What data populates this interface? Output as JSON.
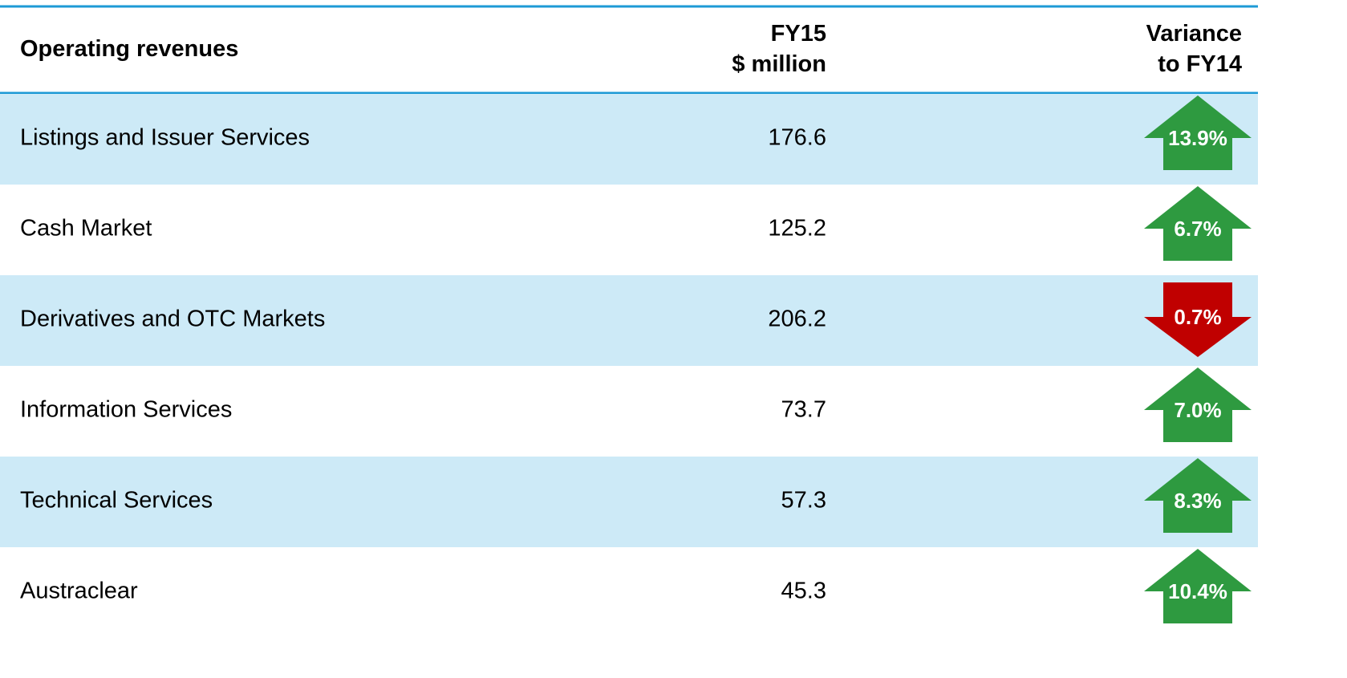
{
  "table": {
    "header": [
      "Operating revenues",
      "FY15\n$ million",
      "Variance\nto FY14"
    ],
    "rows": [
      {
        "label": "Listings and Issuer Services",
        "value": "176.6",
        "variance": "13.9%",
        "direction": "up"
      },
      {
        "label": "Cash Market",
        "value": "125.2",
        "variance": "6.7%",
        "direction": "up"
      },
      {
        "label": "Derivatives and OTC Markets",
        "value": "206.2",
        "variance": "0.7%",
        "direction": "down"
      },
      {
        "label": "Information Services",
        "value": "73.7",
        "variance": "7.0%",
        "direction": "up"
      },
      {
        "label": "Technical Services",
        "value": "57.3",
        "variance": "8.3%",
        "direction": "up"
      },
      {
        "label": "Austraclear",
        "value": "45.3",
        "variance": "10.4%",
        "direction": "up"
      }
    ]
  }
}
